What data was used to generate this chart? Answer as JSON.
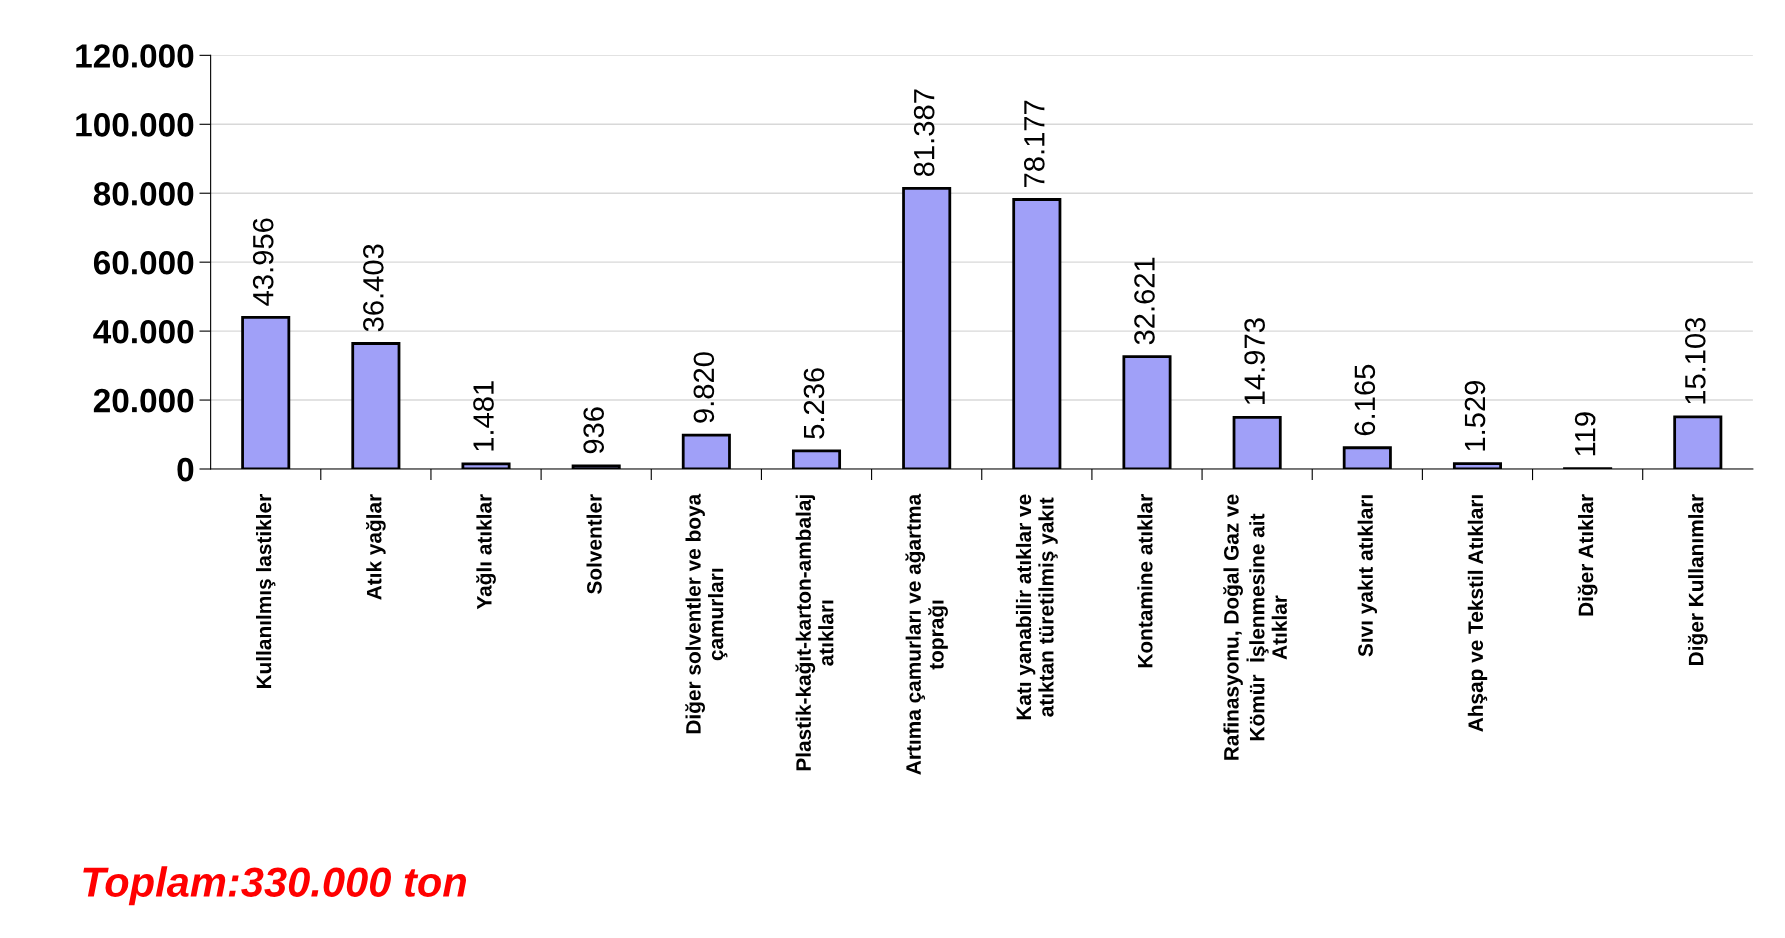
{
  "chart_data": {
    "type": "bar",
    "categories": [
      "Kullanılmış lastikler",
      "Atık yağlar",
      "Yağlı atıklar",
      "Solventler",
      "Diğer solventler ve boya\nçamurları",
      "Plastik-kağıt-karton-ambalaj\natıkları",
      "Artıma çamurları ve ağartma\ntoprağı",
      "Katı yanabilir atıklar ve\natıktan türetilmiş yakıt",
      "Kontamine atıklar",
      "Rafinasyonu, Doğal Gaz ve\nKömür  İşlenmesine ait\nAtıklar",
      "Sıvı yakıt atıkları",
      "Ahşap ve Tekstil Atıkları",
      "Diğer Atıklar",
      "Diğer Kullanımlar"
    ],
    "values": [
      43956,
      36403,
      1481,
      936,
      9820,
      5236,
      81387,
      78177,
      32621,
      14973,
      6165,
      1529,
      119,
      15103
    ],
    "value_labels": [
      "43.956",
      "36.403",
      "1.481",
      "936",
      "9.820",
      "5.236",
      "81.387",
      "78.177",
      "32.621",
      "14.973",
      "6.165",
      "1.529",
      "119",
      "15.103"
    ],
    "color": "#a0a0f8",
    "ylim": [
      0,
      120000
    ],
    "yticks": [
      0,
      {
        "value": 20000,
        "label": "20.000"
      },
      {
        "value": 40000,
        "label": "40.000"
      },
      {
        "value": 60000,
        "label": "60.000"
      },
      {
        "value": 80000,
        "label": "80.000"
      },
      {
        "value": 100000,
        "label": "100.000"
      },
      {
        "value": 120000,
        "label": "120.000"
      }
    ],
    "grid": "y",
    "annotations": [
      "Toplam:330.000 ton"
    ]
  }
}
